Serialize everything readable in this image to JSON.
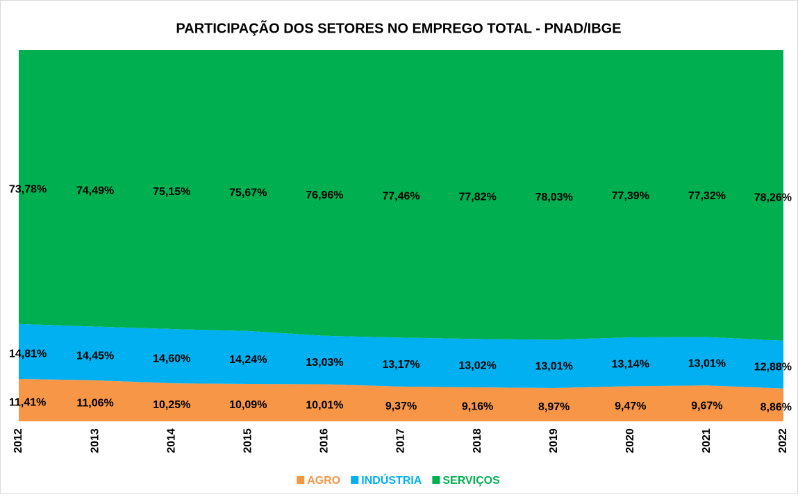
{
  "chart_data": {
    "type": "stacked_area",
    "title": "PARTICIPAÇÃO DOS SETORES NO EMPREGO TOTAL - PNAD/IBGE",
    "categories": [
      "2012",
      "2013",
      "2014",
      "2015",
      "2016",
      "2017",
      "2018",
      "2019",
      "2020",
      "2021",
      "2022"
    ],
    "ylim": [
      0,
      100
    ],
    "legend": "bottom",
    "series": [
      {
        "name": "AGRO",
        "color": "#f79646",
        "values": [
          11.41,
          11.06,
          10.25,
          10.09,
          10.01,
          9.37,
          9.16,
          8.97,
          9.47,
          9.67,
          8.86
        ],
        "value_labels": [
          "11,41%",
          "11,06%",
          "10,25%",
          "10,09%",
          "10,01%",
          "9,37%",
          "9,16%",
          "8,97%",
          "9,47%",
          "9,67%",
          "8,86%"
        ]
      },
      {
        "name": "INDÚSTRIA",
        "color": "#00b0f0",
        "values": [
          14.81,
          14.45,
          14.6,
          14.24,
          13.03,
          13.17,
          13.02,
          13.01,
          13.14,
          13.01,
          12.88
        ],
        "value_labels": [
          "14,81%",
          "14,45%",
          "14,60%",
          "14,24%",
          "13,03%",
          "13,17%",
          "13,02%",
          "13,01%",
          "13,14%",
          "13,01%",
          "12,88%"
        ]
      },
      {
        "name": "SERVIÇOS",
        "color": "#00b050",
        "values": [
          73.78,
          74.49,
          75.15,
          75.67,
          76.96,
          77.46,
          77.82,
          78.03,
          77.39,
          77.32,
          78.26
        ],
        "value_labels": [
          "73,78%",
          "74,49%",
          "75,15%",
          "75,67%",
          "76,96%",
          "77,46%",
          "77,82%",
          "78,03%",
          "77,39%",
          "77,32%",
          "78,26%"
        ]
      }
    ]
  }
}
